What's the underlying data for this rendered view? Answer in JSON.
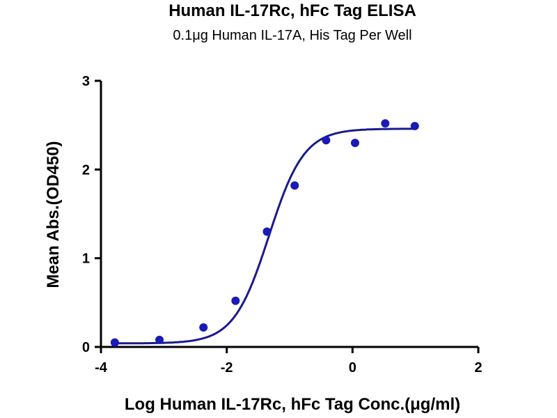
{
  "chart_data": {
    "type": "scatter",
    "title": "Human IL-17Rc, hFc Tag ELISA",
    "subtitle": "0.1μg Human IL-17A, His Tag Per Well",
    "xlabel": "Log Human IL-17Rc, hFc Tag Conc.(μg/ml)",
    "ylabel": "Mean Abs.(OD450)",
    "xlim": [
      -4,
      2
    ],
    "ylim": [
      0,
      3
    ],
    "xticks": [
      -4,
      -2,
      0,
      2
    ],
    "yticks": [
      0,
      1,
      2,
      3
    ],
    "grid": false,
    "series": [
      {
        "x": [
          -3.78,
          -3.07,
          -2.37,
          -1.86,
          -1.36,
          -0.92,
          -0.42,
          0.04,
          0.52,
          0.99
        ],
        "y": [
          0.05,
          0.08,
          0.22,
          0.52,
          1.3,
          1.82,
          2.33,
          2.3,
          2.52,
          2.49
        ],
        "color": "#1a1ab8"
      }
    ],
    "fit": {
      "model": "4PL",
      "bottom": 0.04,
      "top": 2.46,
      "logEC50": -1.33,
      "hill": 1.55,
      "color": "#1a1a8c"
    }
  }
}
